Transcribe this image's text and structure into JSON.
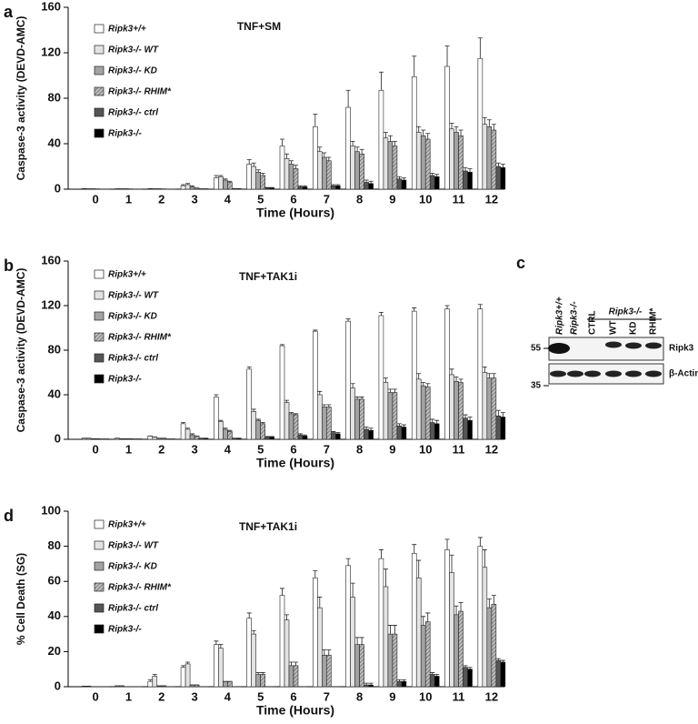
{
  "chart_data": [
    {
      "type": "bar",
      "panel_label": "a",
      "title": "TNF+SM",
      "ylabel": "Caspase-3 activity (DEVD-AMC)",
      "xlabel": "Time (Hours)",
      "categories": [
        "0",
        "1",
        "2",
        "3",
        "4",
        "5",
        "6",
        "7",
        "8",
        "9",
        "10",
        "11",
        "12"
      ],
      "ylim": [
        0,
        160
      ],
      "yticks": [
        0,
        40,
        80,
        120,
        160
      ],
      "legend": "upper left",
      "series": [
        {
          "name": "Ripk3+/+",
          "color": "#ffffff",
          "values": [
            0.5,
            0.3,
            0.5,
            3,
            10,
            22,
            38,
            55,
            72,
            87,
            99,
            108,
            115
          ],
          "errors": [
            0,
            0,
            0,
            1,
            2,
            4,
            6,
            11,
            15,
            16,
            18,
            18,
            18
          ]
        },
        {
          "name": "Ripk3-/- WT",
          "color": "#e3e3e3",
          "values": [
            0.3,
            0.3,
            0.3,
            4,
            11,
            20,
            27,
            33,
            38,
            45,
            50,
            53,
            57
          ],
          "errors": [
            0,
            0,
            0,
            1,
            1,
            3,
            4,
            4,
            4,
            5,
            5,
            5,
            6
          ]
        },
        {
          "name": "Ripk3-/- KD",
          "color": "#a3a3a3",
          "values": [
            0.3,
            0.3,
            0.3,
            2,
            8,
            15,
            22,
            28,
            33,
            42,
            47,
            50,
            55
          ],
          "errors": [
            0,
            0,
            0,
            1,
            1,
            2,
            3,
            4,
            4,
            5,
            5,
            5,
            6
          ]
        },
        {
          "name": "Ripk3-/- RHIM*",
          "color": "#bdbdbd",
          "pattern": "hatch",
          "values": [
            0.2,
            0.2,
            0.2,
            1,
            6,
            12,
            18,
            25,
            31,
            38,
            44,
            47,
            52
          ],
          "errors": [
            0,
            0,
            0,
            0,
            1,
            2,
            3,
            3,
            4,
            4,
            5,
            5,
            5
          ]
        },
        {
          "name": "Ripk3-/- ctrl",
          "color": "#555555",
          "values": [
            0.1,
            0.1,
            0.1,
            0.3,
            0.5,
            1,
            2,
            3,
            6,
            9,
            12,
            16,
            20
          ],
          "errors": [
            0,
            0,
            0,
            0,
            0,
            0.5,
            1,
            1,
            2,
            2,
            2,
            3,
            3
          ]
        },
        {
          "name": "Ripk3-/-",
          "color": "#000000",
          "values": [
            0.1,
            0.1,
            0.1,
            0.3,
            0.5,
            1,
            2,
            3,
            5,
            8,
            11,
            15,
            19
          ],
          "errors": [
            0,
            0,
            0,
            0,
            0,
            0.5,
            1,
            1,
            2,
            2,
            2,
            3,
            3
          ]
        }
      ]
    },
    {
      "type": "bar",
      "panel_label": "b",
      "title": "TNF+TAK1i",
      "ylabel": "Caspase-3 activity (DEVD-AMC)",
      "xlabel": "Time (Hours)",
      "categories": [
        "0",
        "1",
        "2",
        "3",
        "4",
        "5",
        "6",
        "7",
        "8",
        "9",
        "10",
        "11",
        "12"
      ],
      "ylim": [
        0,
        160
      ],
      "yticks": [
        0,
        40,
        80,
        120,
        160
      ],
      "legend": "upper left",
      "series": [
        {
          "name": "Ripk3+/+",
          "color": "#ffffff",
          "values": [
            1,
            1,
            3,
            14,
            38,
            63,
            84,
            97,
            106,
            111,
            115,
            117,
            117
          ],
          "errors": [
            0,
            0,
            0,
            1,
            2,
            2,
            1,
            1,
            2,
            3,
            3,
            3,
            4
          ]
        },
        {
          "name": "Ripk3-/- WT",
          "color": "#e3e3e3",
          "values": [
            1,
            0.5,
            2,
            9,
            16,
            25,
            33,
            40,
            46,
            51,
            54,
            58,
            60
          ],
          "errors": [
            0,
            0,
            0,
            1,
            1,
            2,
            2,
            3,
            4,
            4,
            5,
            5,
            5
          ]
        },
        {
          "name": "Ripk3-/- KD",
          "color": "#a3a3a3",
          "values": [
            0.5,
            0.5,
            1,
            4,
            9,
            17,
            23,
            29,
            36,
            42,
            48,
            52,
            55
          ],
          "errors": [
            0,
            0,
            0,
            1,
            1,
            1,
            1,
            2,
            2,
            3,
            3,
            4,
            4
          ]
        },
        {
          "name": "Ripk3-/- RHIM*",
          "color": "#bdbdbd",
          "pattern": "hatch",
          "values": [
            0.5,
            0.5,
            1,
            3,
            7,
            14,
            22,
            29,
            36,
            42,
            47,
            51,
            55
          ],
          "errors": [
            0,
            0,
            0,
            0,
            1,
            1,
            1,
            2,
            2,
            3,
            3,
            3,
            4
          ]
        },
        {
          "name": "Ripk3-/- ctrl",
          "color": "#555555",
          "values": [
            0.3,
            0.3,
            0.3,
            1,
            1,
            2,
            4,
            6,
            9,
            12,
            15,
            19,
            21
          ],
          "errors": [
            0,
            0,
            0,
            0,
            0,
            0.5,
            1,
            1,
            2,
            2,
            3,
            3,
            5
          ]
        },
        {
          "name": "Ripk3-/-",
          "color": "#000000",
          "values": [
            0.3,
            0.3,
            0.3,
            1,
            1,
            2,
            3,
            5,
            8,
            11,
            14,
            17,
            20
          ],
          "errors": [
            0,
            0,
            0,
            0,
            0,
            0.5,
            1,
            1,
            2,
            2,
            3,
            3,
            4
          ]
        }
      ]
    },
    {
      "type": "bar",
      "panel_label": "d",
      "title": "TNF+TAK1i",
      "ylabel": "% Cell Death (SG)",
      "xlabel": "Time (Hours)",
      "categories": [
        "0",
        "1",
        "2",
        "3",
        "4",
        "5",
        "6",
        "7",
        "8",
        "9",
        "10",
        "11",
        "12"
      ],
      "ylim": [
        0,
        100
      ],
      "yticks": [
        0,
        20,
        40,
        60,
        80,
        100
      ],
      "legend": "upper left",
      "series": [
        {
          "name": "Ripk3+/+",
          "color": "#ffffff",
          "values": [
            0.3,
            0.5,
            3,
            11,
            24,
            39,
            52,
            62,
            69,
            73,
            76,
            78,
            80
          ],
          "errors": [
            0,
            0,
            1,
            1,
            2,
            3,
            4,
            4,
            4,
            5,
            5,
            6,
            5
          ]
        },
        {
          "name": "Ripk3-/- WT",
          "color": "#e3e3e3",
          "values": [
            0.3,
            0.5,
            6,
            13,
            22,
            30,
            38,
            45,
            51,
            57,
            62,
            65,
            68
          ],
          "errors": [
            0,
            0,
            1,
            1,
            2,
            2,
            3,
            6,
            8,
            10,
            10,
            10,
            10
          ]
        },
        {
          "name": "Ripk3-/- KD",
          "color": "#a3a3a3",
          "values": [
            0,
            0,
            0.5,
            1,
            3,
            7,
            12,
            18,
            24,
            30,
            35,
            41,
            45
          ],
          "errors": [
            0,
            0,
            0,
            0,
            0,
            1,
            2,
            3,
            4,
            5,
            5,
            5,
            5
          ]
        },
        {
          "name": "Ripk3-/- RHIM*",
          "color": "#bdbdbd",
          "pattern": "hatch",
          "values": [
            0,
            0,
            0.5,
            1,
            3,
            7,
            12,
            18,
            24,
            30,
            37,
            43,
            47
          ],
          "errors": [
            0,
            0,
            0,
            0,
            0,
            1,
            2,
            3,
            4,
            5,
            5,
            5,
            5
          ]
        },
        {
          "name": "Ripk3-/- ctrl",
          "color": "#555555",
          "values": [
            0,
            0,
            0,
            0,
            0,
            0,
            0,
            0,
            1,
            3,
            7,
            11,
            15
          ],
          "errors": [
            0,
            0,
            0,
            0,
            0,
            0,
            0,
            0,
            1,
            1,
            1,
            1,
            1
          ]
        },
        {
          "name": "Ripk3-/-",
          "color": "#000000",
          "values": [
            0,
            0,
            0,
            0,
            0,
            0,
            0,
            0,
            1,
            3,
            6,
            10,
            14
          ],
          "errors": [
            0,
            0,
            0,
            0,
            0,
            0,
            0,
            0,
            1,
            1,
            1,
            1,
            1
          ]
        }
      ]
    }
  ],
  "blot": {
    "panel_label": "c",
    "lanes": [
      "Ripk3+/+",
      "Ripk3-/-",
      "CTRL",
      "WT",
      "KD",
      "RHIM*"
    ],
    "group_label": "Ripk3-/-",
    "bands": [
      "Ripk3",
      "β-Actin"
    ],
    "markers": [
      "55",
      "35"
    ]
  }
}
